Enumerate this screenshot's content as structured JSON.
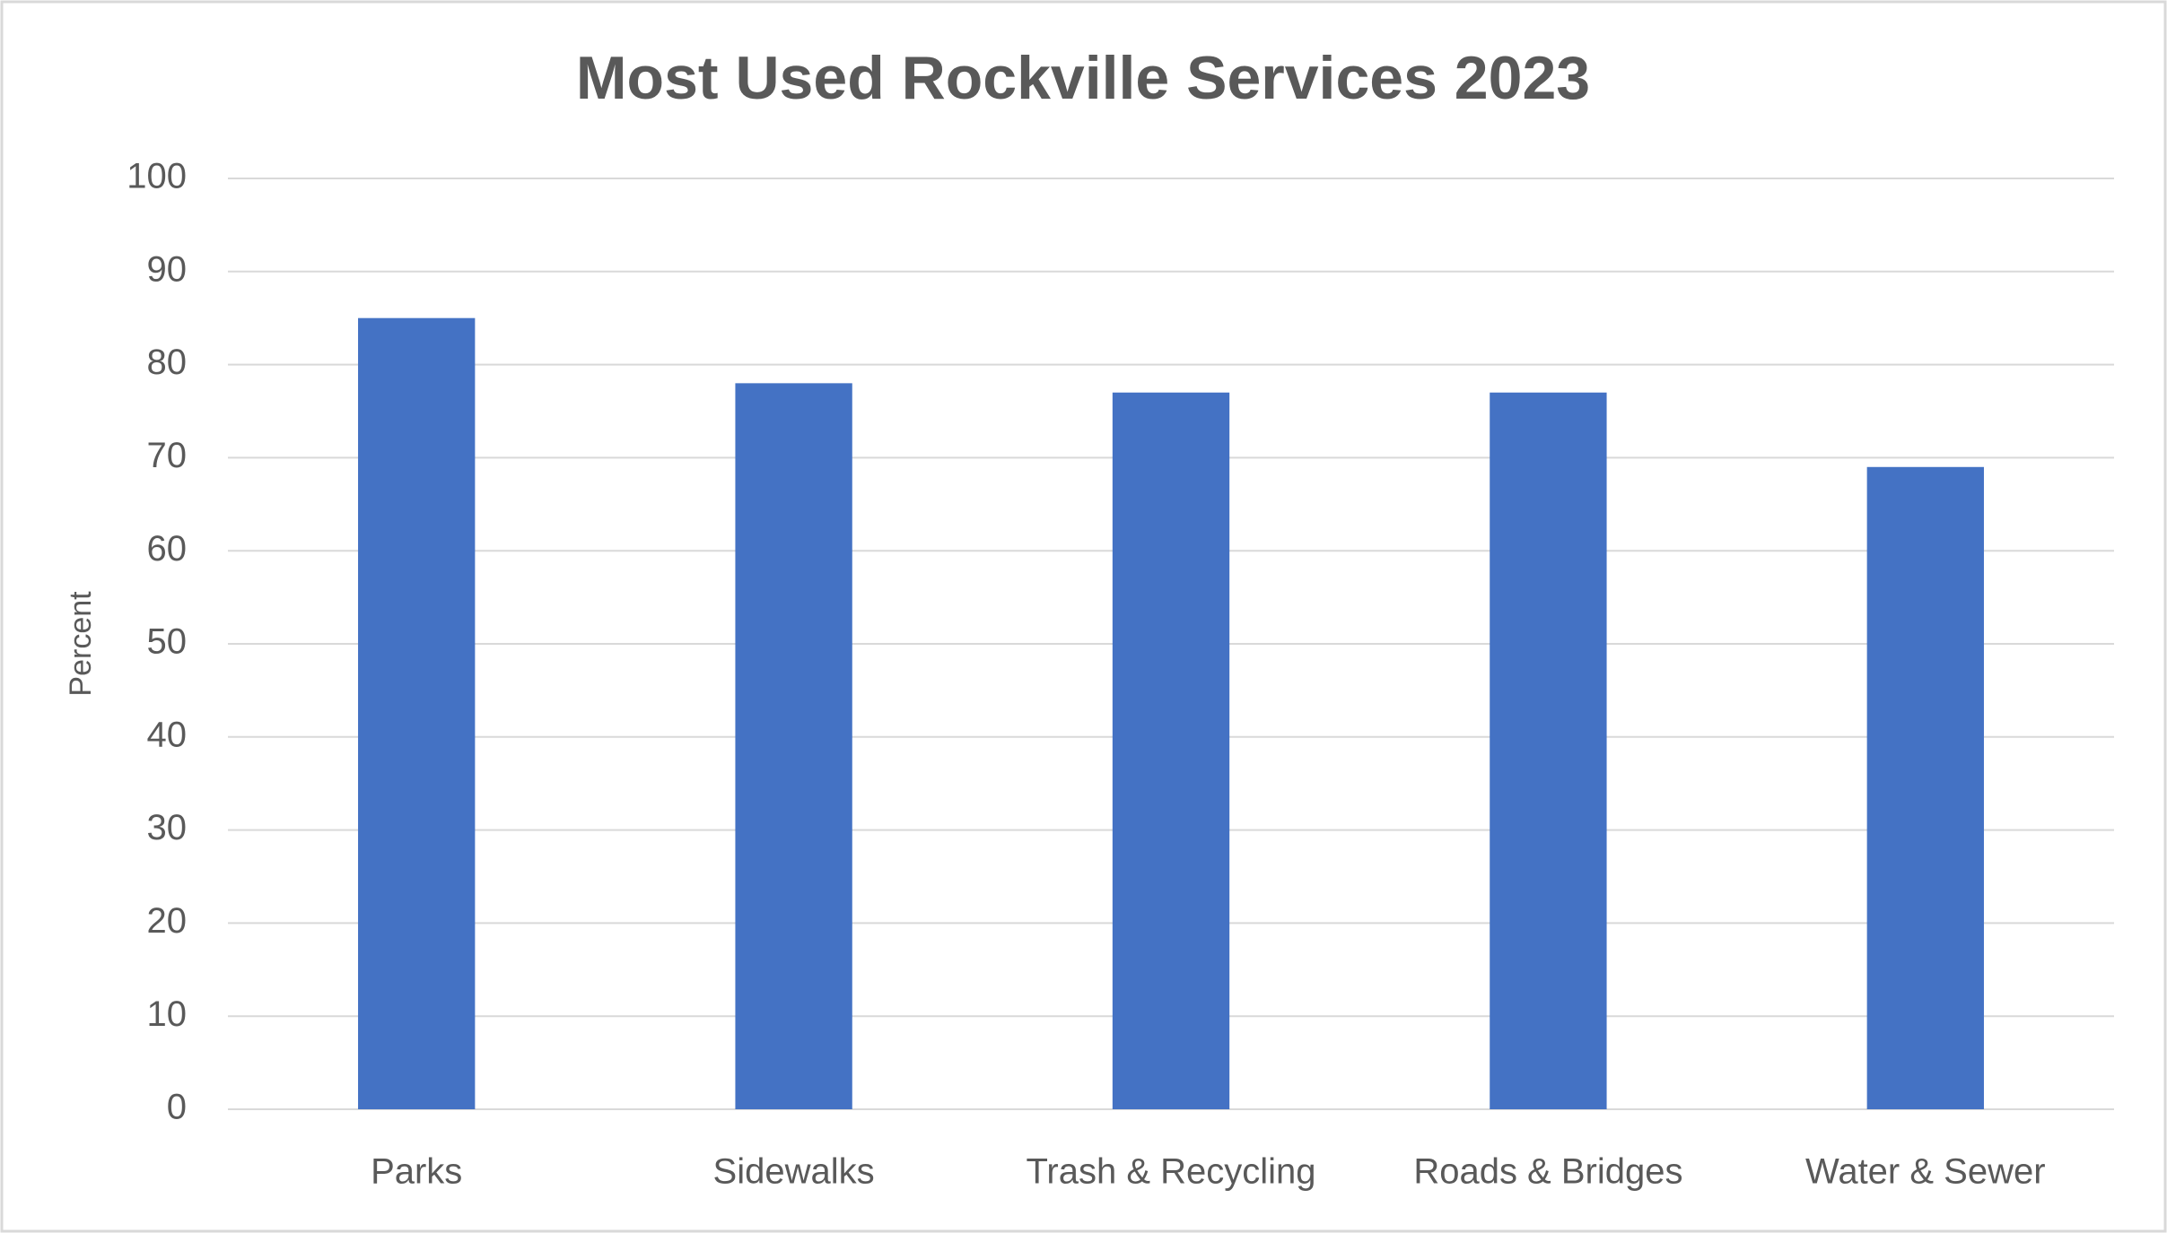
{
  "chart_data": {
    "type": "bar",
    "title": "Most Used Rockville Services 2023",
    "y_label": "Percent",
    "categories": [
      "Parks",
      "Sidewalks",
      "Trash & Recycling",
      "Roads & Bridges",
      "Water & Sewer"
    ],
    "values": [
      85,
      78,
      77,
      77,
      69
    ],
    "color": "#4472c4",
    "ylim": [
      0,
      100
    ],
    "yticks": [
      0,
      10,
      20,
      30,
      40,
      50,
      60,
      70,
      80,
      90,
      100
    ],
    "grid": true
  }
}
